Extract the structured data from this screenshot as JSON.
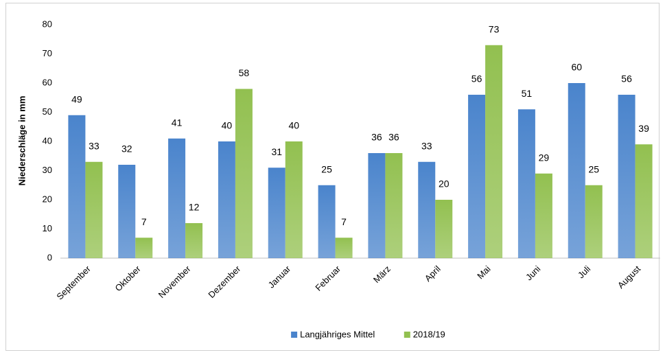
{
  "chart_data": {
    "type": "bar",
    "y_label": "Niederschläge in mm",
    "categories": [
      "September",
      "Oktober",
      "November",
      "Dezember",
      "Januar",
      "Februar",
      "März",
      "April",
      "Mai",
      "Juni",
      "Juli",
      "August"
    ],
    "series": [
      {
        "name": "Langjähriges Mittel",
        "color": "#4a84cc",
        "values": [
          49,
          32,
          41,
          40,
          31,
          25,
          36,
          33,
          56,
          51,
          60,
          56
        ]
      },
      {
        "name": "2018/19",
        "color": "#92c050",
        "values": [
          33,
          7,
          12,
          58,
          40,
          7,
          36,
          20,
          73,
          29,
          25,
          39
        ]
      }
    ],
    "ylim": [
      0,
      80
    ],
    "yticks": [
      0,
      10,
      20,
      30,
      40,
      50,
      60,
      70,
      80
    ],
    "grid": false,
    "legend": "bottom"
  }
}
